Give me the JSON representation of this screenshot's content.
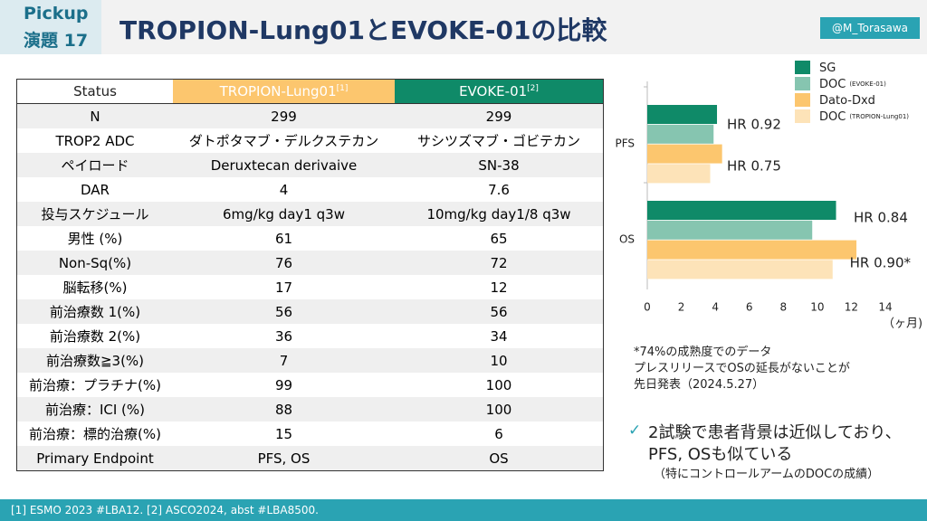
{
  "header": {
    "tag": "Pickup",
    "number": "演題 17",
    "title": "TROPION-Lung01とEVOKE-01の比較",
    "handle": "@M_Torasawa"
  },
  "table": {
    "header": [
      {
        "text": "Status"
      },
      {
        "text": "TROPION-Lung01",
        "sup": "[1]"
      },
      {
        "text": "EVOKE-01",
        "sup": "[2]"
      }
    ],
    "rows": [
      [
        "N",
        299,
        299
      ],
      [
        "TROP2 ADC",
        "ダトポタマブ・デルクステカン",
        "サシツズマブ・ゴビテカン"
      ],
      [
        "ペイロード",
        "Deruxtecan derivaive",
        "SN-38"
      ],
      [
        "DAR",
        4,
        7.6
      ],
      [
        "投与スケジュール",
        "6mg/kg day1 q3w",
        "10mg/kg day1/8 q3w"
      ],
      [
        "男性 (%)",
        61,
        65
      ],
      [
        "Non-Sq(%)",
        76,
        72
      ],
      [
        "脳転移(%)",
        17,
        12
      ],
      [
        "前治療数 1(%)",
        56,
        56
      ],
      [
        "前治療数 2(%)",
        36,
        34
      ],
      [
        "前治療数≧3(%)",
        7,
        10
      ],
      [
        "前治療：プラチナ(%)",
        99,
        100
      ],
      [
        "前治療：ICI (%)",
        88,
        100
      ],
      [
        "前治療：標的治療(%)",
        15,
        6
      ],
      [
        "Primary Endpoint",
        "PFS, OS",
        "OS"
      ]
    ]
  },
  "chart_data": {
    "type": "hbar",
    "categories": [
      "PFS",
      "OS"
    ],
    "series": [
      {
        "name": "SG",
        "color": "#0f8a68",
        "values": [
          4.1,
          11.1
        ]
      },
      {
        "name": "DOC",
        "note": "(EVOKE-01)",
        "color": "#86c5b0",
        "values": [
          3.9,
          9.7
        ]
      },
      {
        "name": "Dato-Dxd",
        "color": "#fcc66e",
        "values": [
          4.4,
          12.3
        ]
      },
      {
        "name": "DOC",
        "note": "(TROPION-Lung01)",
        "color": "#fde3b8",
        "values": [
          3.7,
          10.9
        ]
      }
    ],
    "xlim": [
      0,
      14
    ],
    "xticks": [
      0,
      2,
      4,
      6,
      8,
      10,
      12,
      14
    ],
    "x_unit": "（ヶ月)",
    "annotations": [
      "HR 0.92",
      "HR 0.75",
      "HR 0.84",
      "HR 0.90*"
    ]
  },
  "notes": [
    "*74%の成熟度でのデータ",
    "プレスリリースでOSの延長がないことが",
    "先日発表（2024.5.27）"
  ],
  "conclusion": {
    "mark": "✓",
    "lines": [
      "2試験で患者背景は近似しており、",
      "PFS, OSも似ている"
    ],
    "sub": "（特にコントロールアームのDOCの成績）"
  },
  "footer": "[1] ESMO 2023 #LBA12. [2] ASCO2024, abst #LBA8500."
}
